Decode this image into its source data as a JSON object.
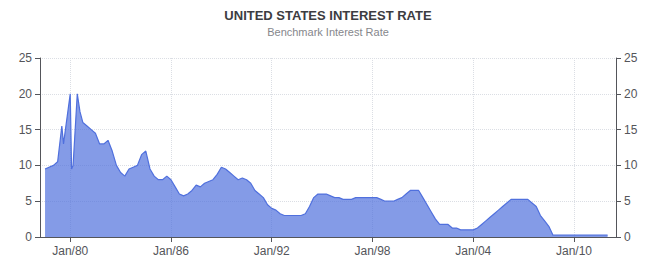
{
  "chart_data": {
    "type": "area",
    "title": "UNITED STATES INTEREST RATE",
    "subtitle": "Benchmark Interest Rate",
    "grid": true,
    "xlim": [
      1978.2,
      2012.5
    ],
    "xticks": [
      {
        "value": 1980,
        "label": "Jan/80"
      },
      {
        "value": 1986,
        "label": "Jan/86"
      },
      {
        "value": 1992,
        "label": "Jan/92"
      },
      {
        "value": 1998,
        "label": "Jan/98"
      },
      {
        "value": 2004,
        "label": "Jan/04"
      },
      {
        "value": 2010,
        "label": "Jan/10"
      }
    ],
    "ylim": [
      0,
      25
    ],
    "yticks": [
      0,
      5,
      10,
      15,
      20,
      25
    ],
    "y2lim": [
      0,
      25
    ],
    "y2ticks": [
      0,
      5,
      10,
      15,
      20,
      25
    ],
    "x": [
      1978.5,
      1979.0,
      1979.25,
      1979.5,
      1979.6,
      1980.0,
      1980.08,
      1980.17,
      1980.42,
      1980.58,
      1980.75,
      1981.0,
      1981.25,
      1981.5,
      1981.75,
      1982.0,
      1982.25,
      1982.5,
      1982.75,
      1983.0,
      1983.25,
      1983.5,
      1983.75,
      1984.0,
      1984.25,
      1984.5,
      1984.75,
      1985.0,
      1985.25,
      1985.5,
      1985.75,
      1986.0,
      1986.25,
      1986.5,
      1986.75,
      1987.0,
      1987.25,
      1987.5,
      1987.75,
      1988.0,
      1988.25,
      1988.5,
      1988.75,
      1989.0,
      1989.25,
      1989.5,
      1989.75,
      1990.0,
      1990.25,
      1990.5,
      1990.75,
      1991.0,
      1991.25,
      1991.5,
      1991.75,
      1992.0,
      1992.25,
      1992.5,
      1992.75,
      1993.0,
      1993.25,
      1993.5,
      1993.75,
      1994.0,
      1994.25,
      1994.5,
      1994.75,
      1995.0,
      1995.25,
      1995.5,
      1995.75,
      1996.0,
      1996.25,
      1996.5,
      1996.75,
      1997.0,
      1997.25,
      1997.5,
      1997.75,
      1998.0,
      1998.25,
      1998.5,
      1998.75,
      1999.0,
      1999.25,
      1999.5,
      1999.75,
      2000.0,
      2000.25,
      2000.5,
      2000.75,
      2001.0,
      2001.25,
      2001.5,
      2001.75,
      2002.0,
      2002.25,
      2002.5,
      2002.75,
      2003.0,
      2003.25,
      2003.5,
      2003.75,
      2004.0,
      2004.25,
      2004.5,
      2004.75,
      2005.0,
      2005.25,
      2005.5,
      2005.75,
      2006.0,
      2006.25,
      2006.5,
      2006.75,
      2007.0,
      2007.25,
      2007.5,
      2007.75,
      2008.0,
      2008.25,
      2008.5,
      2008.75,
      2009.0,
      2009.25,
      2009.5,
      2009.75,
      2010.0,
      2010.25,
      2010.5,
      2010.75,
      2011.0,
      2011.25,
      2011.5,
      2011.75,
      2012.0
    ],
    "values": [
      9.5,
      10.0,
      10.5,
      15.5,
      13.0,
      20.0,
      9.5,
      10.0,
      20.0,
      17.5,
      16.0,
      15.5,
      15.0,
      14.5,
      13.0,
      13.0,
      13.5,
      12.0,
      10.0,
      9.0,
      8.5,
      9.5,
      9.75,
      10.0,
      11.5,
      12.0,
      9.5,
      8.5,
      8.0,
      8.0,
      8.5,
      8.0,
      7.0,
      6.0,
      5.75,
      6.0,
      6.5,
      7.25,
      7.0,
      7.5,
      7.75,
      8.0,
      8.75,
      9.75,
      9.5,
      9.0,
      8.5,
      8.0,
      8.25,
      8.0,
      7.5,
      6.5,
      6.0,
      5.5,
      4.5,
      4.0,
      3.75,
      3.25,
      3.0,
      3.0,
      3.0,
      3.0,
      3.0,
      3.25,
      4.25,
      5.5,
      6.0,
      6.0,
      6.0,
      5.75,
      5.5,
      5.5,
      5.25,
      5.25,
      5.25,
      5.5,
      5.5,
      5.5,
      5.5,
      5.5,
      5.5,
      5.25,
      5.0,
      5.0,
      5.0,
      5.25,
      5.5,
      6.0,
      6.5,
      6.5,
      6.5,
      5.5,
      4.5,
      3.5,
      2.5,
      1.75,
      1.75,
      1.75,
      1.25,
      1.25,
      1.0,
      1.0,
      1.0,
      1.0,
      1.25,
      1.75,
      2.25,
      2.75,
      3.25,
      3.75,
      4.25,
      4.75,
      5.25,
      5.25,
      5.25,
      5.25,
      5.25,
      4.75,
      4.25,
      3.0,
      2.25,
      1.5,
      0.25,
      0.25,
      0.25,
      0.25,
      0.25,
      0.25,
      0.25,
      0.25,
      0.25,
      0.25,
      0.25,
      0.25,
      0.25,
      0.25
    ]
  }
}
